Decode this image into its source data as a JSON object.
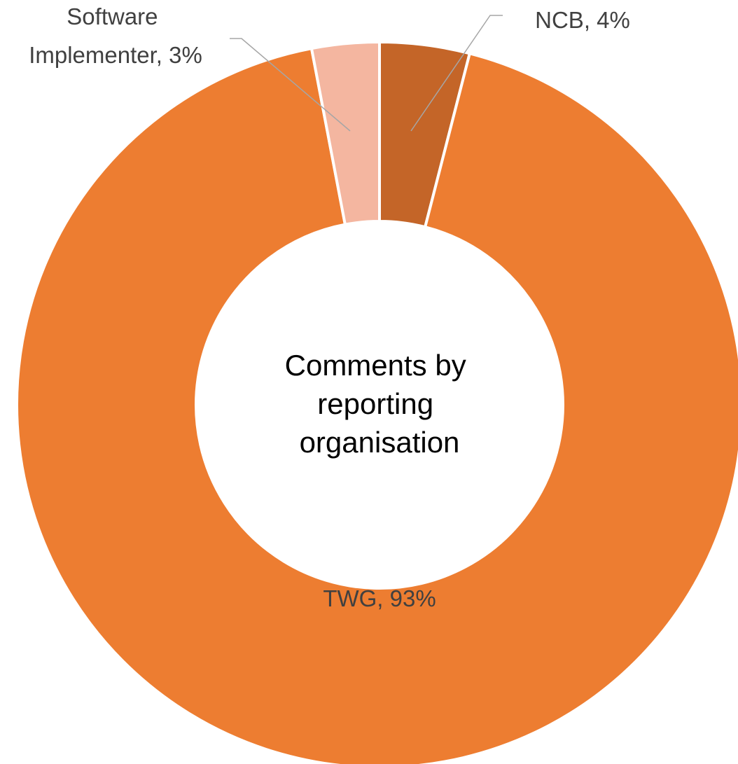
{
  "chart_data": {
    "type": "pie",
    "variant": "donut",
    "center_title_lines": [
      "Comments by",
      "reporting",
      "organisation"
    ],
    "slices": [
      {
        "name": "NCB",
        "value": 4,
        "label": "NCB, 4%",
        "color": "#C46528"
      },
      {
        "name": "TWG",
        "value": 93,
        "label": "TWG, 93%",
        "color": "#ED7D31"
      },
      {
        "name": "Software Implementer",
        "value": 3,
        "label_lines": [
          "Software",
          "Implementer, 3%"
        ],
        "color": "#F4B6A0"
      }
    ],
    "legend": "none",
    "data_labels": true
  }
}
